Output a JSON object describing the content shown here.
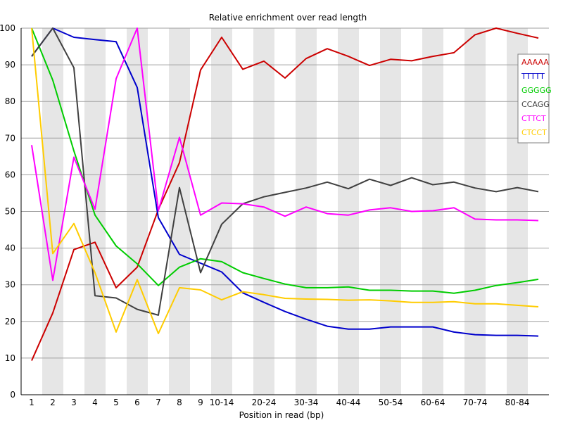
{
  "chart_data": {
    "type": "line",
    "title": "Relative enrichment over read length",
    "xlabel": "Position in read (bp)",
    "ylabel": "",
    "ylim": [
      0,
      100
    ],
    "yticks": [
      0,
      10,
      20,
      30,
      40,
      50,
      60,
      70,
      80,
      90,
      100
    ],
    "grid": true,
    "legend_position": "top-right",
    "x_count": 25,
    "x_tick_labels": [
      {
        "index": 0,
        "label": "1"
      },
      {
        "index": 1,
        "label": "2"
      },
      {
        "index": 2,
        "label": "3"
      },
      {
        "index": 3,
        "label": "4"
      },
      {
        "index": 4,
        "label": "5"
      },
      {
        "index": 5,
        "label": "6"
      },
      {
        "index": 6,
        "label": "7"
      },
      {
        "index": 7,
        "label": "8"
      },
      {
        "index": 8,
        "label": "9"
      },
      {
        "index": 9,
        "label": "10-14"
      },
      {
        "index": 11,
        "label": "20-24"
      },
      {
        "index": 13,
        "label": "30-34"
      },
      {
        "index": 15,
        "label": "40-44"
      },
      {
        "index": 17,
        "label": "50-54"
      },
      {
        "index": 19,
        "label": "60-64"
      },
      {
        "index": 21,
        "label": "70-74"
      },
      {
        "index": 23,
        "label": "80-84"
      }
    ],
    "series": [
      {
        "name": "AAAAA",
        "color": "#cc0000",
        "values": [
          9.3,
          22.3,
          39.6,
          41.6,
          29.2,
          34.8,
          50.5,
          63.3,
          88.6,
          97.5,
          88.8,
          91.0,
          86.4,
          91.7,
          94.4,
          92.3,
          89.8,
          91.5,
          91.1,
          92.3,
          93.3,
          98.2,
          100.0,
          98.6,
          97.3
        ]
      },
      {
        "name": "TTTTT",
        "color": "#0000cc",
        "values": [
          92.3,
          100.0,
          97.5,
          96.9,
          96.3,
          83.8,
          48.3,
          38.3,
          35.9,
          33.5,
          27.8,
          25.2,
          22.7,
          20.6,
          18.7,
          17.9,
          17.9,
          18.5,
          18.5,
          18.5,
          17.1,
          16.4,
          16.2,
          16.2,
          16.0
        ]
      },
      {
        "name": "GGGGG",
        "color": "#00cc00",
        "values": [
          100.0,
          85.8,
          66.5,
          49.0,
          40.6,
          35.7,
          29.8,
          34.8,
          37.1,
          36.3,
          33.3,
          31.7,
          30.2,
          29.2,
          29.2,
          29.4,
          28.5,
          28.5,
          28.3,
          28.3,
          27.7,
          28.5,
          29.8,
          30.6,
          31.5
        ]
      },
      {
        "name": "CCAGG",
        "color": "#404040",
        "values": [
          92.3,
          100.0,
          89.2,
          27.0,
          26.4,
          23.3,
          21.7,
          56.5,
          33.3,
          46.5,
          52.1,
          54.0,
          55.2,
          56.4,
          58.0,
          56.2,
          58.8,
          57.1,
          59.2,
          57.3,
          58.0,
          56.4,
          55.4,
          56.5,
          55.4
        ]
      },
      {
        "name": "CTTCT",
        "color": "#ff00ff",
        "values": [
          68.1,
          31.2,
          64.8,
          50.6,
          86.2,
          100.0,
          50.2,
          70.2,
          49.0,
          52.3,
          52.1,
          51.2,
          48.7,
          51.2,
          49.4,
          49.0,
          50.4,
          51.0,
          50.0,
          50.2,
          51.0,
          47.9,
          47.7,
          47.7,
          47.5
        ]
      },
      {
        "name": "CTCCT",
        "color": "#ffcc00",
        "values": [
          100.0,
          38.5,
          46.7,
          33.3,
          17.1,
          31.4,
          16.7,
          29.2,
          28.6,
          25.9,
          28.1,
          27.3,
          26.3,
          26.1,
          26.0,
          25.8,
          25.9,
          25.6,
          25.2,
          25.2,
          25.4,
          24.8,
          24.8,
          24.4,
          24.0
        ]
      }
    ]
  }
}
